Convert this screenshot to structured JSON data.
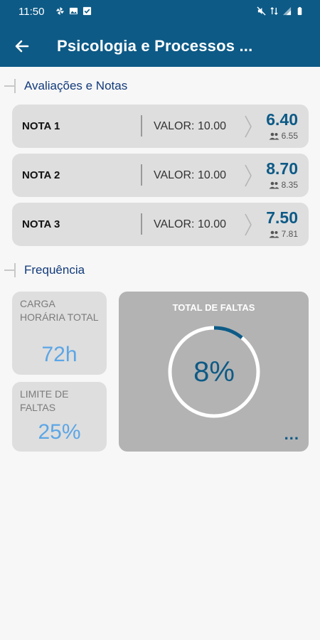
{
  "status_bar": {
    "time": "11:50",
    "left_icons": [
      "pinwheel-icon",
      "image-icon",
      "checkbox-icon"
    ],
    "right_icons": [
      "mute-icon",
      "data-icon",
      "signal-icon",
      "battery-icon"
    ]
  },
  "header": {
    "title": "Psicologia e Processos ...",
    "back_icon": "arrow-left-icon"
  },
  "grades_section": {
    "title": "Avaliações e Notas",
    "items": [
      {
        "name": "NOTA 1",
        "valor": "VALOR: 10.00",
        "score": "6.40",
        "class_avg": "6.55"
      },
      {
        "name": "NOTA 2",
        "valor": "VALOR: 10.00",
        "score": "8.70",
        "class_avg": "8.35"
      },
      {
        "name": "NOTA 3",
        "valor": "VALOR: 10.00",
        "score": "7.50",
        "class_avg": "7.81"
      }
    ]
  },
  "frequency_section": {
    "title": "Frequência",
    "carga_label": "Carga Horária Total",
    "carga_value": "72h",
    "limite_label": "Limite de Faltas",
    "limite_value": "25%",
    "faltas_title": "TOTAL DE FALTAS",
    "faltas_value": "8%",
    "faltas_fraction": 0.08,
    "more_label": "..."
  },
  "colors": {
    "primary": "#0d5a86",
    "accent_light": "#5ca6e6",
    "card_bg": "#dedede",
    "faltas_bg": "#b3b3b3"
  }
}
